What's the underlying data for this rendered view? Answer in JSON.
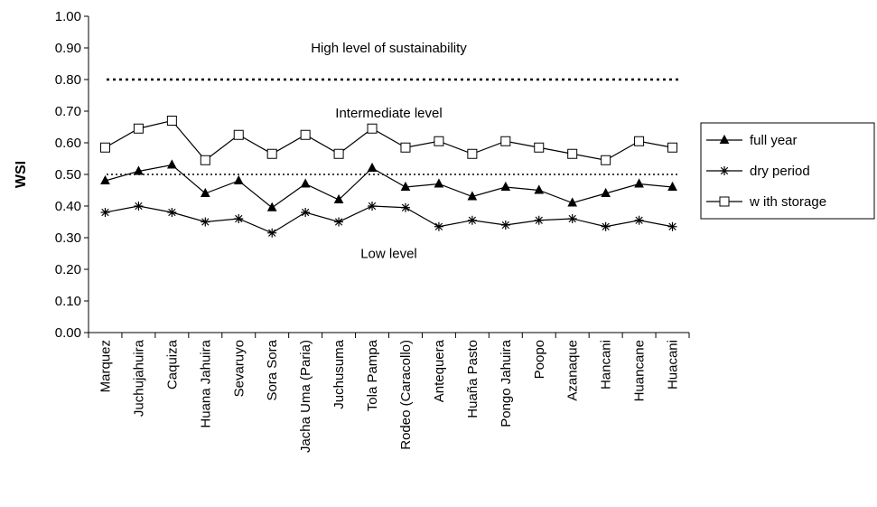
{
  "chart_data": {
    "type": "line",
    "ylabel": "WSI",
    "xlabel": "",
    "ylim": [
      0,
      1
    ],
    "yticks": [
      0,
      0.1,
      0.2,
      0.3,
      0.4,
      0.5,
      0.6,
      0.7,
      0.8,
      0.9,
      1.0
    ],
    "ytick_labels": [
      "0.00",
      "0.10",
      "0.20",
      "0.30",
      "0.40",
      "0.50",
      "0.60",
      "0.70",
      "0.80",
      "0.90",
      "1.00"
    ],
    "grid": false,
    "legend_position": "right",
    "categories": [
      "Marquez",
      "Juchujahuira",
      "Caquiza",
      "Huana Jahuira",
      "Sevaruyo",
      "Sora Sora",
      "Jacha Uma (Paria)",
      "Juchusuma",
      "Tola Pampa",
      "Rodeo (Caracollo)",
      "Antequera",
      "Huaña Pasto",
      "Pongo Jahuira",
      "Poopo",
      "Azanaque",
      "Hancani",
      "Huancane",
      "Huacani"
    ],
    "series": [
      {
        "name": "full year",
        "marker": "triangle",
        "values": [
          0.48,
          0.51,
          0.53,
          0.44,
          0.48,
          0.395,
          0.47,
          0.42,
          0.52,
          0.46,
          0.47,
          0.43,
          0.46,
          0.45,
          0.41,
          0.44,
          0.47,
          0.46
        ]
      },
      {
        "name": "dry period",
        "marker": "star",
        "values": [
          0.38,
          0.4,
          0.38,
          0.35,
          0.36,
          0.315,
          0.38,
          0.35,
          0.4,
          0.395,
          0.335,
          0.355,
          0.34,
          0.355,
          0.36,
          0.335,
          0.355,
          0.335
        ]
      },
      {
        "name": "w ith storage",
        "marker": "square",
        "values": [
          0.585,
          0.645,
          0.67,
          0.545,
          0.625,
          0.565,
          0.625,
          0.565,
          0.645,
          0.585,
          0.605,
          0.565,
          0.605,
          0.585,
          0.565,
          0.545,
          0.605,
          0.585
        ]
      }
    ],
    "thresholds": [
      {
        "value": 0.8,
        "style": "dotted-thick"
      },
      {
        "value": 0.5,
        "style": "dotted-thin"
      }
    ],
    "annotations": [
      {
        "text": "High level of sustainability",
        "y": 0.9
      },
      {
        "text": "Intermediate level",
        "y": 0.695
      },
      {
        "text": "Low level",
        "y": 0.25
      }
    ]
  }
}
